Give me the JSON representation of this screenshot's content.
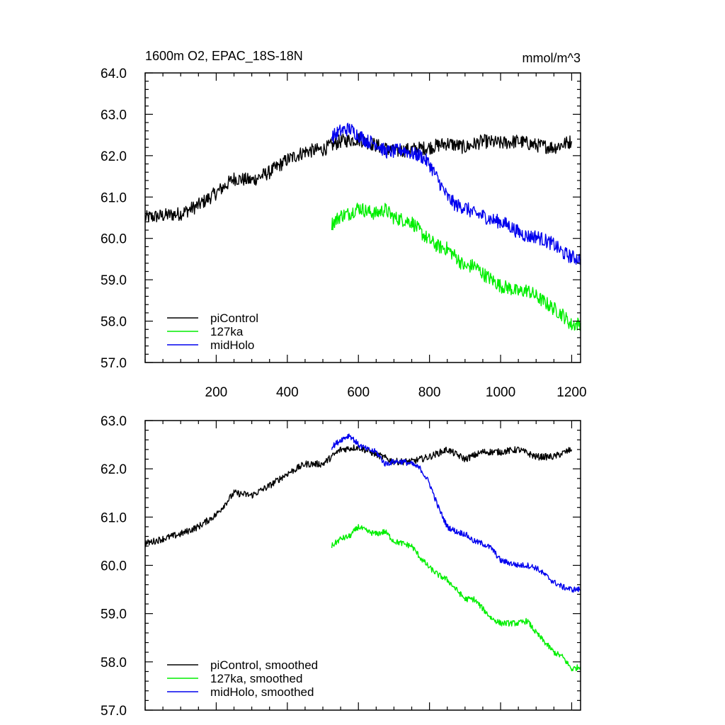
{
  "figure": {
    "title_left": "1600m O2, EPAC_18S-18N",
    "title_right": "mmol/m^3"
  },
  "colors": {
    "piControl": "#000000",
    "127ka": "#00ee00",
    "midHolo": "#0000ee"
  },
  "chart_data": [
    {
      "type": "line",
      "title": "1600m O2, EPAC_18S-18N",
      "units": "mmol/m^3",
      "xlabel": "",
      "ylabel": "",
      "xlim": [
        0,
        1225
      ],
      "ylim": [
        57.0,
        64.0
      ],
      "xticks": [
        200,
        400,
        600,
        800,
        1000,
        1200
      ],
      "xtick_labels": [
        "200",
        "400",
        "600",
        "800",
        "1000",
        "1200"
      ],
      "yticks": [
        57.0,
        58.0,
        59.0,
        60.0,
        61.0,
        62.0,
        63.0,
        64.0
      ],
      "ytick_labels": [
        "57.0",
        "58.0",
        "59.0",
        "60.0",
        "61.0",
        "62.0",
        "63.0",
        "64.0"
      ],
      "legend": "bottom-left",
      "series": [
        {
          "name": "piControl",
          "color": "#000000",
          "x": [
            0,
            50,
            100,
            150,
            200,
            250,
            300,
            350,
            400,
            450,
            500,
            550,
            600,
            650,
            700,
            750,
            800,
            850,
            900,
            950,
            1000,
            1050,
            1100,
            1150,
            1200
          ],
          "y": [
            60.5,
            60.55,
            60.6,
            60.8,
            61.1,
            61.45,
            61.4,
            61.6,
            61.9,
            62.1,
            62.15,
            62.35,
            62.4,
            62.25,
            62.1,
            62.15,
            62.2,
            62.3,
            62.2,
            62.35,
            62.3,
            62.35,
            62.25,
            62.2,
            62.35
          ],
          "noise": 0.17
        },
        {
          "name": "127ka",
          "color": "#00ee00",
          "x": [
            525,
            550,
            575,
            600,
            625,
            650,
            675,
            700,
            725,
            750,
            775,
            800,
            825,
            850,
            875,
            900,
            925,
            950,
            975,
            1000,
            1025,
            1050,
            1075,
            1100,
            1125,
            1150,
            1175,
            1200,
            1225
          ],
          "y": [
            60.35,
            60.55,
            60.6,
            60.75,
            60.65,
            60.6,
            60.7,
            60.5,
            60.45,
            60.4,
            60.15,
            59.95,
            59.8,
            59.75,
            59.55,
            59.3,
            59.35,
            59.15,
            59.0,
            58.85,
            58.8,
            58.7,
            58.75,
            58.6,
            58.45,
            58.3,
            58.15,
            57.9,
            57.95
          ],
          "noise": 0.17
        },
        {
          "name": "midHolo",
          "color": "#0000ee",
          "x": [
            525,
            550,
            575,
            600,
            625,
            650,
            675,
            700,
            725,
            750,
            775,
            800,
            825,
            850,
            875,
            900,
            925,
            950,
            975,
            1000,
            1025,
            1050,
            1075,
            1100,
            1125,
            1150,
            1175,
            1200,
            1225
          ],
          "y": [
            62.45,
            62.6,
            62.65,
            62.5,
            62.35,
            62.3,
            62.1,
            62.1,
            62.15,
            62.05,
            62.0,
            61.8,
            61.4,
            61.0,
            60.8,
            60.75,
            60.6,
            60.55,
            60.45,
            60.4,
            60.3,
            60.15,
            60.05,
            60.05,
            59.95,
            59.85,
            59.65,
            59.55,
            59.5
          ],
          "noise": 0.17
        }
      ]
    },
    {
      "type": "line",
      "title": "",
      "xlabel": "",
      "ylabel": "",
      "xlim": [
        0,
        1225
      ],
      "ylim": [
        57.0,
        63.0
      ],
      "xticks": [
        200,
        400,
        600,
        800,
        1000,
        1200
      ],
      "xtick_labels": [
        "",
        "",
        "",
        "",
        "",
        ""
      ],
      "yticks": [
        57.0,
        58.0,
        59.0,
        60.0,
        61.0,
        62.0,
        63.0
      ],
      "ytick_labels": [
        "57.0",
        "58.0",
        "59.0",
        "60.0",
        "61.0",
        "62.0",
        "63.0"
      ],
      "legend": "bottom-left",
      "series": [
        {
          "name": "piControl, smoothed",
          "color": "#000000",
          "x": [
            0,
            50,
            100,
            150,
            200,
            250,
            300,
            350,
            400,
            450,
            500,
            550,
            600,
            650,
            700,
            750,
            800,
            850,
            900,
            950,
            1000,
            1050,
            1100,
            1150,
            1200
          ],
          "y": [
            60.45,
            60.55,
            60.65,
            60.8,
            61.05,
            61.5,
            61.45,
            61.65,
            61.9,
            62.1,
            62.1,
            62.4,
            62.45,
            62.3,
            62.15,
            62.15,
            62.25,
            62.4,
            62.2,
            62.35,
            62.35,
            62.4,
            62.25,
            62.25,
            62.4
          ],
          "noise": 0.07
        },
        {
          "name": "127ka, smoothed",
          "color": "#00ee00",
          "x": [
            525,
            550,
            575,
            600,
            625,
            650,
            675,
            700,
            725,
            750,
            775,
            800,
            825,
            850,
            875,
            900,
            925,
            950,
            975,
            1000,
            1025,
            1050,
            1075,
            1100,
            1125,
            1150,
            1175,
            1200,
            1225
          ],
          "y": [
            60.4,
            60.55,
            60.6,
            60.8,
            60.7,
            60.65,
            60.7,
            60.5,
            60.45,
            60.4,
            60.15,
            59.95,
            59.8,
            59.7,
            59.5,
            59.3,
            59.3,
            59.1,
            58.9,
            58.8,
            58.8,
            58.8,
            58.85,
            58.6,
            58.4,
            58.2,
            58.1,
            57.85,
            57.9
          ],
          "noise": 0.06
        },
        {
          "name": "midHolo, smoothed",
          "color": "#0000ee",
          "x": [
            525,
            550,
            575,
            600,
            625,
            650,
            675,
            700,
            725,
            750,
            775,
            800,
            825,
            850,
            875,
            900,
            925,
            950,
            975,
            1000,
            1025,
            1050,
            1075,
            1100,
            1125,
            1150,
            1175,
            1200,
            1225
          ],
          "y": [
            62.45,
            62.6,
            62.7,
            62.5,
            62.4,
            62.35,
            62.1,
            62.15,
            62.15,
            62.1,
            62.0,
            61.7,
            61.2,
            60.8,
            60.7,
            60.65,
            60.5,
            60.45,
            60.35,
            60.1,
            60.05,
            60.0,
            60.0,
            59.95,
            59.8,
            59.65,
            59.55,
            59.5,
            59.5
          ],
          "noise": 0.06
        }
      ]
    }
  ]
}
